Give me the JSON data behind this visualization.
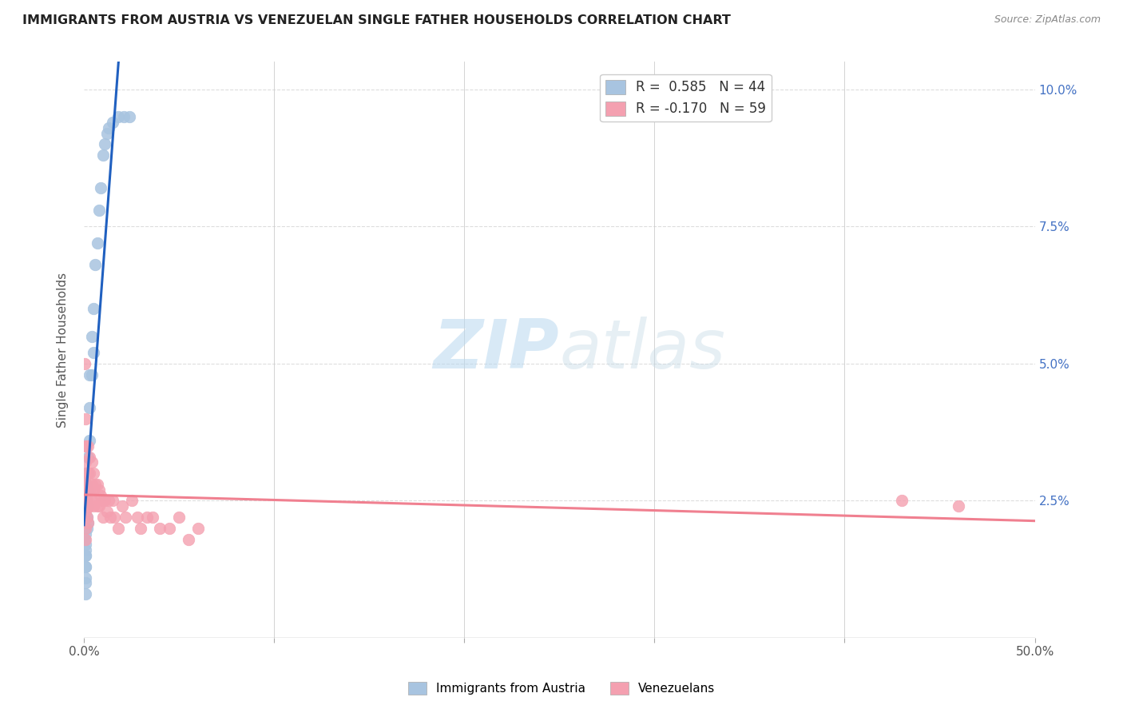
{
  "title": "IMMIGRANTS FROM AUSTRIA VS VENEZUELAN SINGLE FATHER HOUSEHOLDS CORRELATION CHART",
  "source": "Source: ZipAtlas.com",
  "ylabel": "Single Father Households",
  "legend1_label": "R =  0.585   N = 44",
  "legend2_label": "R = -0.170   N = 59",
  "legend_bottom": [
    "Immigrants from Austria",
    "Venezuelans"
  ],
  "austria_color": "#a8c4e0",
  "venezuela_color": "#f4a0b0",
  "austria_line_color": "#2060c0",
  "venezuela_line_color": "#f08090",
  "austria_x": [
    0.0005,
    0.0006,
    0.0007,
    0.0008,
    0.0009,
    0.001,
    0.001,
    0.001,
    0.001,
    0.001,
    0.001,
    0.001,
    0.001,
    0.001,
    0.0012,
    0.0013,
    0.0014,
    0.0015,
    0.0016,
    0.0018,
    0.002,
    0.002,
    0.002,
    0.002,
    0.002,
    0.003,
    0.003,
    0.003,
    0.004,
    0.004,
    0.005,
    0.005,
    0.006,
    0.007,
    0.008,
    0.009,
    0.01,
    0.011,
    0.012,
    0.013,
    0.015,
    0.018,
    0.021,
    0.024
  ],
  "austria_y": [
    0.02,
    0.018,
    0.016,
    0.015,
    0.013,
    0.025,
    0.022,
    0.019,
    0.017,
    0.015,
    0.013,
    0.011,
    0.01,
    0.008,
    0.03,
    0.028,
    0.026,
    0.024,
    0.022,
    0.02,
    0.033,
    0.03,
    0.027,
    0.024,
    0.021,
    0.048,
    0.042,
    0.036,
    0.055,
    0.048,
    0.06,
    0.052,
    0.068,
    0.072,
    0.078,
    0.082,
    0.088,
    0.09,
    0.092,
    0.093,
    0.094,
    0.095,
    0.095,
    0.095
  ],
  "venezuela_x": [
    0.0005,
    0.0007,
    0.0008,
    0.001,
    0.001,
    0.001,
    0.001,
    0.001,
    0.001,
    0.0012,
    0.0014,
    0.0015,
    0.0016,
    0.0018,
    0.002,
    0.002,
    0.002,
    0.002,
    0.002,
    0.003,
    0.003,
    0.003,
    0.003,
    0.004,
    0.004,
    0.004,
    0.005,
    0.005,
    0.005,
    0.006,
    0.006,
    0.007,
    0.007,
    0.008,
    0.008,
    0.009,
    0.01,
    0.01,
    0.011,
    0.012,
    0.013,
    0.014,
    0.015,
    0.016,
    0.018,
    0.02,
    0.022,
    0.025,
    0.028,
    0.03,
    0.033,
    0.036,
    0.04,
    0.045,
    0.05,
    0.055,
    0.06,
    0.43,
    0.46
  ],
  "venezuela_y": [
    0.05,
    0.04,
    0.035,
    0.032,
    0.028,
    0.025,
    0.023,
    0.02,
    0.018,
    0.035,
    0.03,
    0.028,
    0.025,
    0.022,
    0.035,
    0.03,
    0.027,
    0.024,
    0.021,
    0.033,
    0.03,
    0.027,
    0.024,
    0.032,
    0.028,
    0.025,
    0.03,
    0.027,
    0.024,
    0.028,
    0.025,
    0.028,
    0.024,
    0.027,
    0.024,
    0.026,
    0.025,
    0.022,
    0.025,
    0.023,
    0.025,
    0.022,
    0.025,
    0.022,
    0.02,
    0.024,
    0.022,
    0.025,
    0.022,
    0.02,
    0.022,
    0.022,
    0.02,
    0.02,
    0.022,
    0.018,
    0.02,
    0.025,
    0.024
  ],
  "xlim": [
    0.0,
    0.5
  ],
  "ylim": [
    0.0,
    0.105
  ],
  "ytick_vals": [
    0.0,
    0.025,
    0.05,
    0.075,
    0.1
  ],
  "ytick_labels": [
    "",
    "2.5%",
    "5.0%",
    "7.5%",
    "10.0%"
  ],
  "xtick_vals": [
    0.0,
    0.1,
    0.2,
    0.3,
    0.4,
    0.5
  ],
  "xtick_labels": [
    "0.0%",
    "",
    "",
    "",
    "",
    "50.0%"
  ],
  "watermark_zip": "ZIP",
  "watermark_atlas": "atlas",
  "watermark_color": "#c8e0f4"
}
